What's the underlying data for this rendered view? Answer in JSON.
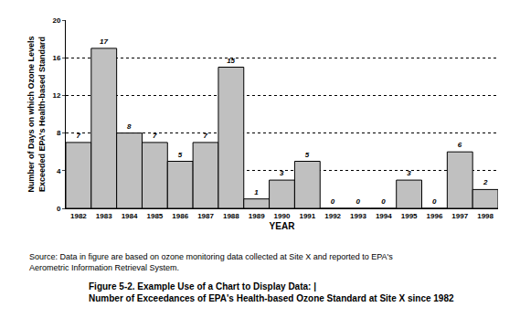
{
  "chart_data": {
    "type": "bar",
    "xlabel": "YEAR",
    "ylabel": "Number of Days on which Ozone Levels Exceeded EPA's Health-based Standard",
    "categories": [
      "1982",
      "1983",
      "1984",
      "1985",
      "1986",
      "1987",
      "1988",
      "1989",
      "1990",
      "1991",
      "1992",
      "1993",
      "1994",
      "1995",
      "1996",
      "1997",
      "1998"
    ],
    "values": [
      7,
      17,
      8,
      7,
      5,
      7,
      15,
      1,
      3,
      5,
      0,
      0,
      0,
      3,
      0,
      6,
      2
    ],
    "color": "#c0c0c0",
    "ylim": [
      0,
      20
    ],
    "yticks": [
      0,
      4,
      8,
      12,
      16,
      20
    ],
    "grid": true,
    "data_labels": true,
    "source": "Source: Data in figure are based on ozone monitoring data collected at Site X and reported to EPA's Aerometric Information Retrieval System.",
    "caption": [
      "Figure 5-2. Example Use of a Chart to Display Data: |",
      "Number of Exceedances of EPA's Health-based Ozone Standard at Site X since 1982"
    ]
  }
}
